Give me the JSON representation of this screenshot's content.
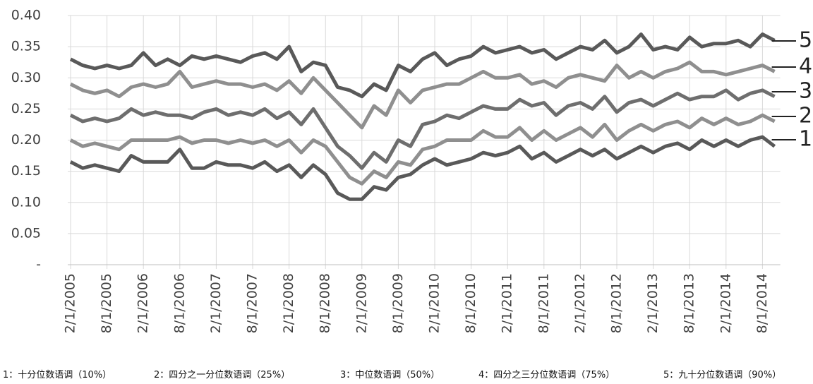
{
  "chart_data": {
    "type": "line",
    "categories": [
      "2/1/2005",
      null,
      null,
      "8/1/2005",
      null,
      null,
      "2/1/2006",
      null,
      null,
      "8/1/2006",
      null,
      null,
      "2/1/2007",
      null,
      null,
      "8/1/2007",
      null,
      null,
      "2/1/2008",
      null,
      null,
      "8/1/2008",
      null,
      null,
      "2/1/2009",
      null,
      null,
      "8/1/2009",
      null,
      null,
      "2/1/2010",
      null,
      null,
      "8/1/2010",
      null,
      null,
      "2/1/2011",
      null,
      null,
      "8/1/2011",
      null,
      null,
      "2/1/2012",
      null,
      null,
      "8/1/2012",
      null,
      null,
      "2/1/2013",
      null,
      null,
      "8/1/2013",
      null,
      null,
      "2/1/2014",
      null,
      null,
      "8/1/2014",
      null
    ],
    "ylim": [
      0,
      0.4
    ],
    "yticks": [
      {
        "value": 0,
        "label": "-"
      },
      0.05,
      {
        "value": 0.1,
        "label": "0.10"
      },
      0.15,
      {
        "value": 0.2,
        "label": "0.20"
      },
      0.25,
      {
        "value": 0.3,
        "label": "0.30"
      },
      0.35,
      {
        "value": 0.4,
        "label": "0.40"
      }
    ],
    "grid": true,
    "series": [
      {
        "name": "1：十分位数语调（10%）",
        "end_label": "1",
        "color": "#595959",
        "values": [
          0.165,
          0.155,
          0.16,
          0.155,
          0.15,
          0.175,
          0.165,
          0.165,
          0.165,
          0.185,
          0.155,
          0.155,
          0.165,
          0.16,
          0.16,
          0.155,
          0.165,
          0.15,
          0.16,
          0.14,
          0.16,
          0.145,
          0.115,
          0.105,
          0.105,
          0.125,
          0.12,
          0.14,
          0.145,
          0.16,
          0.17,
          0.16,
          0.165,
          0.17,
          0.18,
          0.175,
          0.18,
          0.19,
          0.17,
          0.18,
          0.165,
          0.175,
          0.185,
          0.175,
          0.185,
          0.17,
          0.18,
          0.19,
          0.18,
          0.19,
          0.195,
          0.185,
          0.2,
          0.19,
          0.2,
          0.19,
          0.2,
          0.205,
          0.19
        ]
      },
      {
        "name": "2：四分之一分位数语调（25%）",
        "end_label": "2",
        "color": "#8f8f8f",
        "values": [
          0.2,
          0.19,
          0.195,
          0.19,
          0.185,
          0.2,
          0.2,
          0.2,
          0.2,
          0.205,
          0.195,
          0.2,
          0.2,
          0.195,
          0.2,
          0.195,
          0.2,
          0.19,
          0.2,
          0.18,
          0.2,
          0.19,
          0.165,
          0.14,
          0.13,
          0.15,
          0.14,
          0.165,
          0.16,
          0.185,
          0.19,
          0.2,
          0.2,
          0.2,
          0.215,
          0.205,
          0.205,
          0.22,
          0.2,
          0.215,
          0.2,
          0.21,
          0.22,
          0.205,
          0.225,
          0.2,
          0.215,
          0.225,
          0.215,
          0.225,
          0.23,
          0.22,
          0.235,
          0.225,
          0.235,
          0.225,
          0.23,
          0.24,
          0.23
        ]
      },
      {
        "name": "3：中位数语调（50%）",
        "end_label": "3",
        "color": "#6e6e6e",
        "values": [
          0.24,
          0.23,
          0.235,
          0.23,
          0.235,
          0.25,
          0.24,
          0.245,
          0.24,
          0.24,
          0.235,
          0.245,
          0.25,
          0.24,
          0.245,
          0.24,
          0.25,
          0.235,
          0.245,
          0.225,
          0.25,
          0.22,
          0.19,
          0.175,
          0.155,
          0.18,
          0.165,
          0.2,
          0.19,
          0.225,
          0.23,
          0.24,
          0.235,
          0.245,
          0.255,
          0.25,
          0.25,
          0.265,
          0.255,
          0.26,
          0.24,
          0.255,
          0.26,
          0.25,
          0.27,
          0.245,
          0.26,
          0.265,
          0.255,
          0.265,
          0.275,
          0.265,
          0.27,
          0.27,
          0.28,
          0.265,
          0.275,
          0.28,
          0.27
        ]
      },
      {
        "name": "4：四分之三分位数语调（75%）",
        "end_label": "4",
        "color": "#8f8f8f",
        "values": [
          0.29,
          0.28,
          0.275,
          0.28,
          0.27,
          0.285,
          0.29,
          0.285,
          0.29,
          0.31,
          0.285,
          0.29,
          0.295,
          0.29,
          0.29,
          0.285,
          0.29,
          0.28,
          0.295,
          0.275,
          0.3,
          0.28,
          0.26,
          0.24,
          0.22,
          0.255,
          0.24,
          0.28,
          0.26,
          0.28,
          0.285,
          0.29,
          0.29,
          0.3,
          0.31,
          0.3,
          0.3,
          0.305,
          0.29,
          0.295,
          0.285,
          0.3,
          0.305,
          0.3,
          0.295,
          0.32,
          0.3,
          0.31,
          0.3,
          0.31,
          0.315,
          0.325,
          0.31,
          0.31,
          0.305,
          0.31,
          0.315,
          0.32,
          0.31
        ]
      },
      {
        "name": "5：九十分位数语调（90%）",
        "end_label": "5",
        "color": "#595959",
        "values": [
          0.33,
          0.32,
          0.315,
          0.32,
          0.315,
          0.32,
          0.34,
          0.32,
          0.33,
          0.32,
          0.335,
          0.33,
          0.335,
          0.33,
          0.325,
          0.335,
          0.34,
          0.33,
          0.35,
          0.31,
          0.325,
          0.32,
          0.285,
          0.28,
          0.27,
          0.29,
          0.28,
          0.32,
          0.31,
          0.33,
          0.34,
          0.32,
          0.33,
          0.335,
          0.35,
          0.34,
          0.345,
          0.35,
          0.34,
          0.345,
          0.33,
          0.34,
          0.35,
          0.345,
          0.36,
          0.34,
          0.35,
          0.37,
          0.345,
          0.35,
          0.345,
          0.365,
          0.35,
          0.355,
          0.355,
          0.36,
          0.35,
          0.37,
          0.36
        ]
      }
    ]
  }
}
